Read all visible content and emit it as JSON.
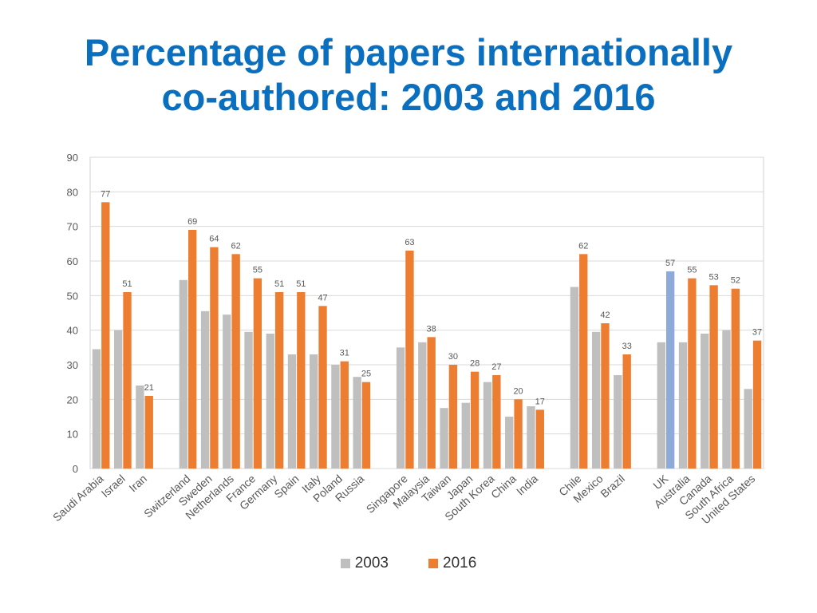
{
  "title": {
    "line1": "Percentage of papers internationally",
    "line2": "co-authored: 2003 and 2016"
  },
  "colors": {
    "series_2003": "#bfbfbf",
    "series_2016": "#ed7d31",
    "highlight_2016": "#8eaadb",
    "title": "#0a6fbf",
    "grid": "#d9d9d9",
    "axis_text": "#595959"
  },
  "chart_data": {
    "type": "bar",
    "ylim": [
      0,
      90
    ],
    "yticks": [
      0,
      10,
      20,
      30,
      40,
      50,
      60,
      70,
      80,
      90
    ],
    "grid": true,
    "legend_position": "bottom",
    "groups": [
      [
        "Saudi Arabia",
        "Israel",
        "Iran"
      ],
      [
        "Switzerland",
        "Sweden",
        "Netherlands",
        "France",
        "Germany",
        "Spain",
        "Italy",
        "Poland",
        "Russia"
      ],
      [
        "Singapore",
        "Malaysia",
        "Taiwan",
        "Japan",
        "South Korea",
        "China",
        "India"
      ],
      [
        "Chile",
        "Mexico",
        "Brazil"
      ],
      [
        "UK",
        "Australia",
        "Canada",
        "South Africa",
        "United States"
      ]
    ],
    "categories": [
      "Saudi Arabia",
      "Israel",
      "Iran",
      "Switzerland",
      "Sweden",
      "Netherlands",
      "France",
      "Germany",
      "Spain",
      "Italy",
      "Poland",
      "Russia",
      "Singapore",
      "Malaysia",
      "Taiwan",
      "Japan",
      "South Korea",
      "China",
      "India",
      "Chile",
      "Mexico",
      "Brazil",
      "UK",
      "Australia",
      "Canada",
      "South Africa",
      "United States"
    ],
    "highlight_category": "UK",
    "series": [
      {
        "name": "2003",
        "values": [
          34.5,
          40,
          24,
          54.5,
          45.5,
          44.5,
          39.5,
          39,
          33,
          33,
          30,
          26.5,
          35,
          36.5,
          17.5,
          19,
          25,
          15,
          18,
          52.5,
          39.5,
          27,
          36.5,
          36.5,
          39,
          40,
          23
        ]
      },
      {
        "name": "2016",
        "values": [
          77,
          51,
          21,
          69,
          64,
          62,
          55,
          51,
          51,
          47,
          31,
          25,
          63,
          38,
          30,
          28,
          27,
          20,
          17,
          62,
          42,
          33,
          57,
          55,
          53,
          52,
          37
        ],
        "labels": [
          "77",
          "51",
          "21",
          "69",
          "64",
          "62",
          "55",
          "51",
          "51",
          "47",
          "31",
          "25",
          "63",
          "38",
          "30",
          "28",
          "27",
          "20",
          "17",
          "62",
          "42",
          "33",
          "57",
          "55",
          "53",
          "52",
          "37"
        ]
      }
    ]
  }
}
